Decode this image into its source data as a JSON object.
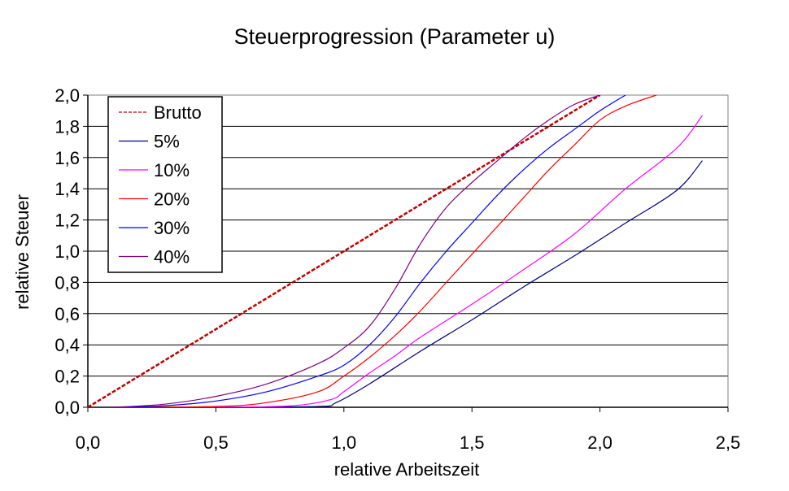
{
  "chart_data": {
    "type": "line",
    "title": "Steuerprogression (Parameter u)",
    "xlabel": "relative Arbeitszeit",
    "ylabel": "relative Steuer",
    "xlim": [
      0,
      2.5
    ],
    "ylim": [
      0,
      2.0
    ],
    "x_ticks": [
      "0,0",
      "0,5",
      "1,0",
      "1,5",
      "2,0",
      "2,5"
    ],
    "y_ticks": [
      "0,0",
      "0,2",
      "0,4",
      "0,6",
      "0,8",
      "1,0",
      "1,2",
      "1,4",
      "1,6",
      "1,8",
      "2,0"
    ],
    "grid": "horizontal",
    "legend_position": "top-left",
    "series": [
      {
        "name": "Brutto",
        "color": "#c00000",
        "dash": "dashed",
        "points": [
          [
            0,
            0
          ],
          [
            0.5,
            0.5
          ],
          [
            1.0,
            1.0
          ],
          [
            1.5,
            1.5
          ],
          [
            2.0,
            2.0
          ]
        ]
      },
      {
        "name": "5%",
        "color": "#000080",
        "dash": "solid",
        "points": [
          [
            0.1,
            0.0
          ],
          [
            0.5,
            0.0
          ],
          [
            0.9,
            0.005
          ],
          [
            0.97,
            0.03
          ],
          [
            1.1,
            0.15
          ],
          [
            1.3,
            0.36
          ],
          [
            1.5,
            0.56
          ],
          [
            1.7,
            0.77
          ],
          [
            1.9,
            0.97
          ],
          [
            2.1,
            1.18
          ],
          [
            2.3,
            1.39
          ],
          [
            2.4,
            1.58
          ]
        ]
      },
      {
        "name": "10%",
        "color": "#ff00ff",
        "dash": "solid",
        "points": [
          [
            0.1,
            0.0
          ],
          [
            0.5,
            0.0
          ],
          [
            0.8,
            0.01
          ],
          [
            0.95,
            0.05
          ],
          [
            1.0,
            0.1
          ],
          [
            1.1,
            0.22
          ],
          [
            1.2,
            0.33
          ],
          [
            1.3,
            0.45
          ],
          [
            1.5,
            0.66
          ],
          [
            1.7,
            0.88
          ],
          [
            1.9,
            1.11
          ],
          [
            2.1,
            1.4
          ],
          [
            2.3,
            1.66
          ],
          [
            2.4,
            1.87
          ]
        ]
      },
      {
        "name": "20%",
        "color": "#ff0000",
        "dash": "solid",
        "points": [
          [
            0.1,
            0.0
          ],
          [
            0.5,
            0.005
          ],
          [
            0.7,
            0.03
          ],
          [
            0.9,
            0.1
          ],
          [
            1.0,
            0.2
          ],
          [
            1.1,
            0.32
          ],
          [
            1.2,
            0.46
          ],
          [
            1.3,
            0.62
          ],
          [
            1.4,
            0.8
          ],
          [
            1.5,
            0.98
          ],
          [
            1.6,
            1.16
          ],
          [
            1.7,
            1.34
          ],
          [
            1.8,
            1.52
          ],
          [
            1.9,
            1.68
          ],
          [
            2.0,
            1.84
          ],
          [
            2.1,
            1.93
          ],
          [
            2.22,
            2.0
          ]
        ]
      },
      {
        "name": "30%",
        "color": "#0000ff",
        "dash": "solid",
        "points": [
          [
            0.1,
            0.0
          ],
          [
            0.3,
            0.01
          ],
          [
            0.5,
            0.04
          ],
          [
            0.7,
            0.1
          ],
          [
            0.9,
            0.2
          ],
          [
            1.0,
            0.27
          ],
          [
            1.1,
            0.4
          ],
          [
            1.2,
            0.58
          ],
          [
            1.3,
            0.8
          ],
          [
            1.4,
            1.0
          ],
          [
            1.5,
            1.18
          ],
          [
            1.6,
            1.36
          ],
          [
            1.7,
            1.52
          ],
          [
            1.8,
            1.66
          ],
          [
            1.9,
            1.78
          ],
          [
            2.0,
            1.9
          ],
          [
            2.1,
            2.0
          ]
        ]
      },
      {
        "name": "40%",
        "color": "#800080",
        "dash": "solid",
        "points": [
          [
            0.1,
            0.0
          ],
          [
            0.3,
            0.02
          ],
          [
            0.5,
            0.07
          ],
          [
            0.7,
            0.15
          ],
          [
            0.9,
            0.28
          ],
          [
            1.0,
            0.38
          ],
          [
            1.1,
            0.52
          ],
          [
            1.2,
            0.76
          ],
          [
            1.3,
            1.05
          ],
          [
            1.4,
            1.28
          ],
          [
            1.5,
            1.44
          ],
          [
            1.6,
            1.58
          ],
          [
            1.7,
            1.72
          ],
          [
            1.8,
            1.84
          ],
          [
            1.9,
            1.94
          ],
          [
            2.0,
            2.0
          ]
        ]
      }
    ]
  }
}
